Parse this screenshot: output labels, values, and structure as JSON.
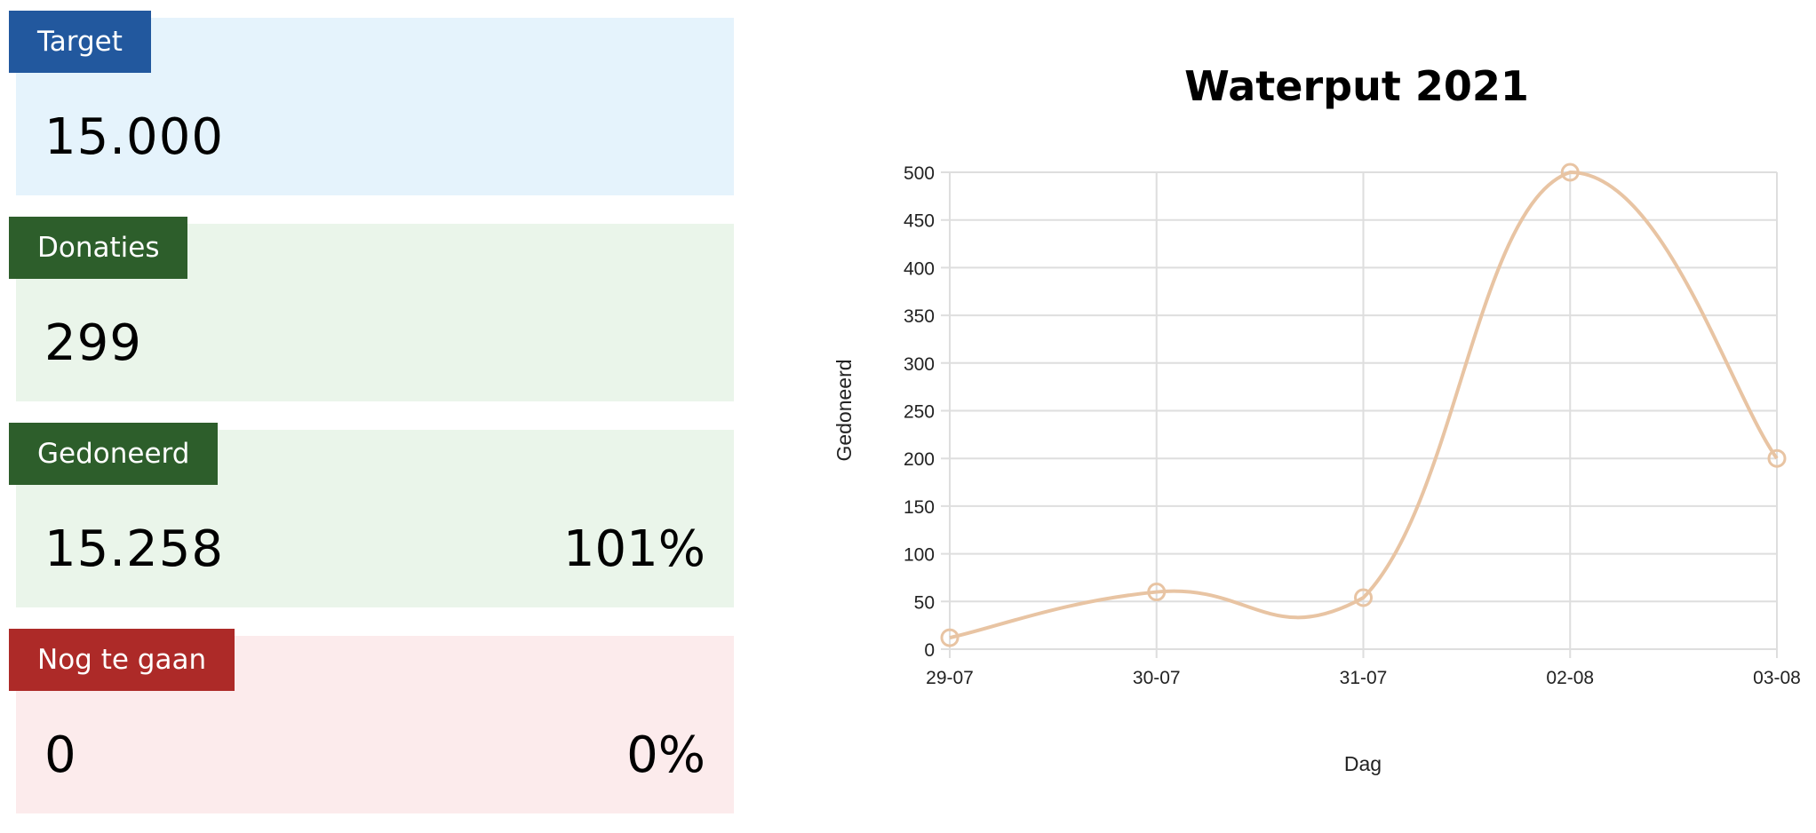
{
  "cards": [
    {
      "label": "Target",
      "value": "15.000",
      "percent": "",
      "bg": "#e5f3fc",
      "tab_color": "#22589e"
    },
    {
      "label": "Donaties",
      "value": "299",
      "percent": "",
      "bg": "#eaf5ea",
      "tab_color": "#2d5e2b"
    },
    {
      "label": "Gedoneerd",
      "value": "15.258",
      "percent": "101%",
      "bg": "#eaf5ea",
      "tab_color": "#2d5e2b"
    },
    {
      "label": "Nog te gaan",
      "value": "0",
      "percent": "0%",
      "bg": "#fcebec",
      "tab_color": "#ad2a28"
    }
  ],
  "chart_data": {
    "type": "line",
    "title": "Waterput 2021",
    "xlabel": "Dag",
    "ylabel": "Gedoneerd",
    "categories": [
      "29-07",
      "30-07",
      "31-07",
      "02-08",
      "03-08"
    ],
    "series": [
      {
        "values": [
          12,
          60,
          54,
          500,
          200
        ],
        "color": "#e8c4a3"
      }
    ],
    "ylim": [
      0,
      500
    ],
    "yticks": [
      0,
      50,
      100,
      150,
      200,
      250,
      300,
      350,
      400,
      450,
      500
    ],
    "grid": true,
    "smooth": true,
    "legend": "none"
  }
}
